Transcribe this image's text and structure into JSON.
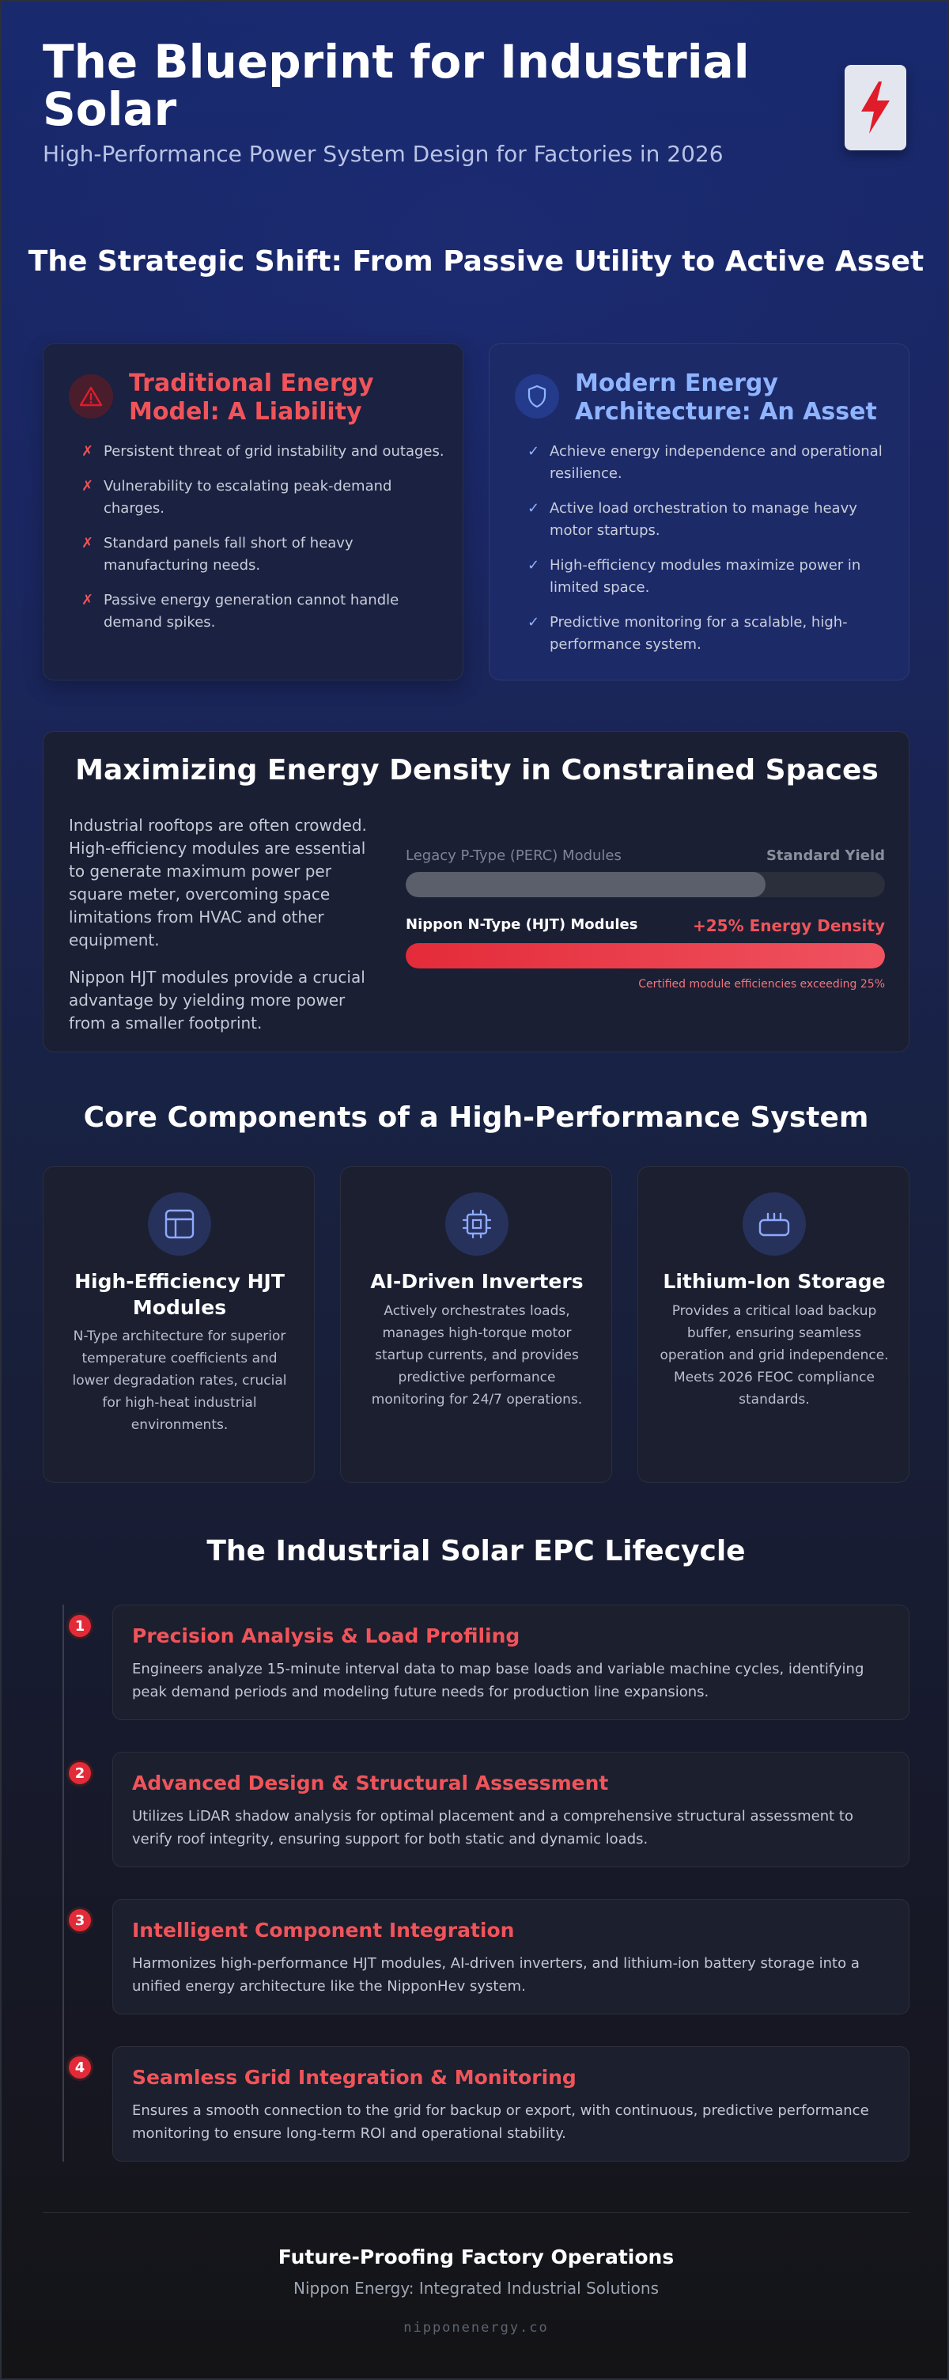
{
  "header": {
    "title": "The Blueprint for Industrial Solar",
    "subtitle": "High-Performance Power System Design for Factories in 2026",
    "logo_icon": "lightning-bolt-icon"
  },
  "shift": {
    "title": "The Strategic Shift: From Passive Utility to Active Asset",
    "traditional": {
      "icon": "warning-triangle-icon",
      "title": "Traditional Energy Model: A Liability",
      "mark": "✗",
      "items": [
        "Persistent threat of grid instability and outages.",
        "Vulnerability to escalating peak-demand charges.",
        "Standard panels fall short of heavy manufacturing needs.",
        "Passive energy generation cannot handle demand spikes."
      ]
    },
    "modern": {
      "icon": "shield-icon",
      "title": "Modern Energy Architecture: An Asset",
      "mark": "✓",
      "items": [
        "Achieve energy independence and operational resilience.",
        "Active load orchestration to manage heavy motor startups.",
        "High-efficiency modules maximize power in limited space.",
        "Predictive monitoring for a scalable, high-performance system."
      ]
    }
  },
  "density": {
    "title": "Maximizing Energy Density in Constrained Spaces",
    "paragraphs": [
      "Industrial rooftops are often crowded. High-efficiency modules are essential to generate maximum power per square meter, overcoming space limitations from HVAC and other equipment.",
      "Nippon HJT modules provide a crucial advantage by yielding more power from a smaller footprint."
    ],
    "legacy": {
      "label": "Legacy P-Type (PERC) Modules",
      "value_label": "Standard Yield",
      "fill": 0.75
    },
    "hjt": {
      "label": "Nippon N-Type (HJT) Modules",
      "value_label": "+25% Energy Density",
      "fill": 1.0
    },
    "note": "Certified module efficiencies exceeding 25%"
  },
  "components": {
    "title": "Core Components of a High-Performance System",
    "items": [
      {
        "icon": "solar-panel-icon",
        "title": "High-Efficiency HJT Modules",
        "desc": "N-Type architecture for superior temperature coefficients and lower degradation rates, crucial for high-heat industrial environments."
      },
      {
        "icon": "cpu-chip-icon",
        "title": "AI-Driven Inverters",
        "desc": "Actively orchestrates loads, manages high-torque motor startup currents, and provides predictive performance monitoring for 24/7 operations."
      },
      {
        "icon": "battery-icon",
        "title": "Lithium-Ion Storage",
        "desc": "Provides a critical load backup buffer, ensuring seamless operation and grid independence. Meets 2026 FEOC compliance standards."
      }
    ]
  },
  "lifecycle": {
    "title": "The Industrial Solar EPC Lifecycle",
    "steps": [
      {
        "num": "1",
        "title": "Precision Analysis & Load Profiling",
        "desc": "Engineers analyze 15-minute interval data to map base loads and variable machine cycles, identifying peak demand periods and modeling future needs for production line expansions."
      },
      {
        "num": "2",
        "title": "Advanced Design & Structural Assessment",
        "desc": "Utilizes LiDAR shadow analysis for optimal placement and a comprehensive structural assessment to verify roof integrity, ensuring support for both static and dynamic loads."
      },
      {
        "num": "3",
        "title": "Intelligent Component Integration",
        "desc": "Harmonizes high-performance HJT modules, AI-driven inverters, and lithium-ion battery storage into a unified energy architecture like the NipponHev system."
      },
      {
        "num": "4",
        "title": "Seamless Grid Integration & Monitoring",
        "desc": "Ensures a smooth connection to the grid for backup or export, with continuous, predictive performance monitoring to ensure long-term ROI and operational stability."
      }
    ]
  },
  "footer": {
    "title": "Future-Proofing Factory Operations",
    "subtitle": "Nippon Energy: Integrated Industrial Solutions",
    "url": "nipponenergy.co"
  },
  "colors": {
    "accent_red": "#f0545a",
    "accent_blue": "#8fb4ff",
    "bar_red": "#e42b39"
  }
}
